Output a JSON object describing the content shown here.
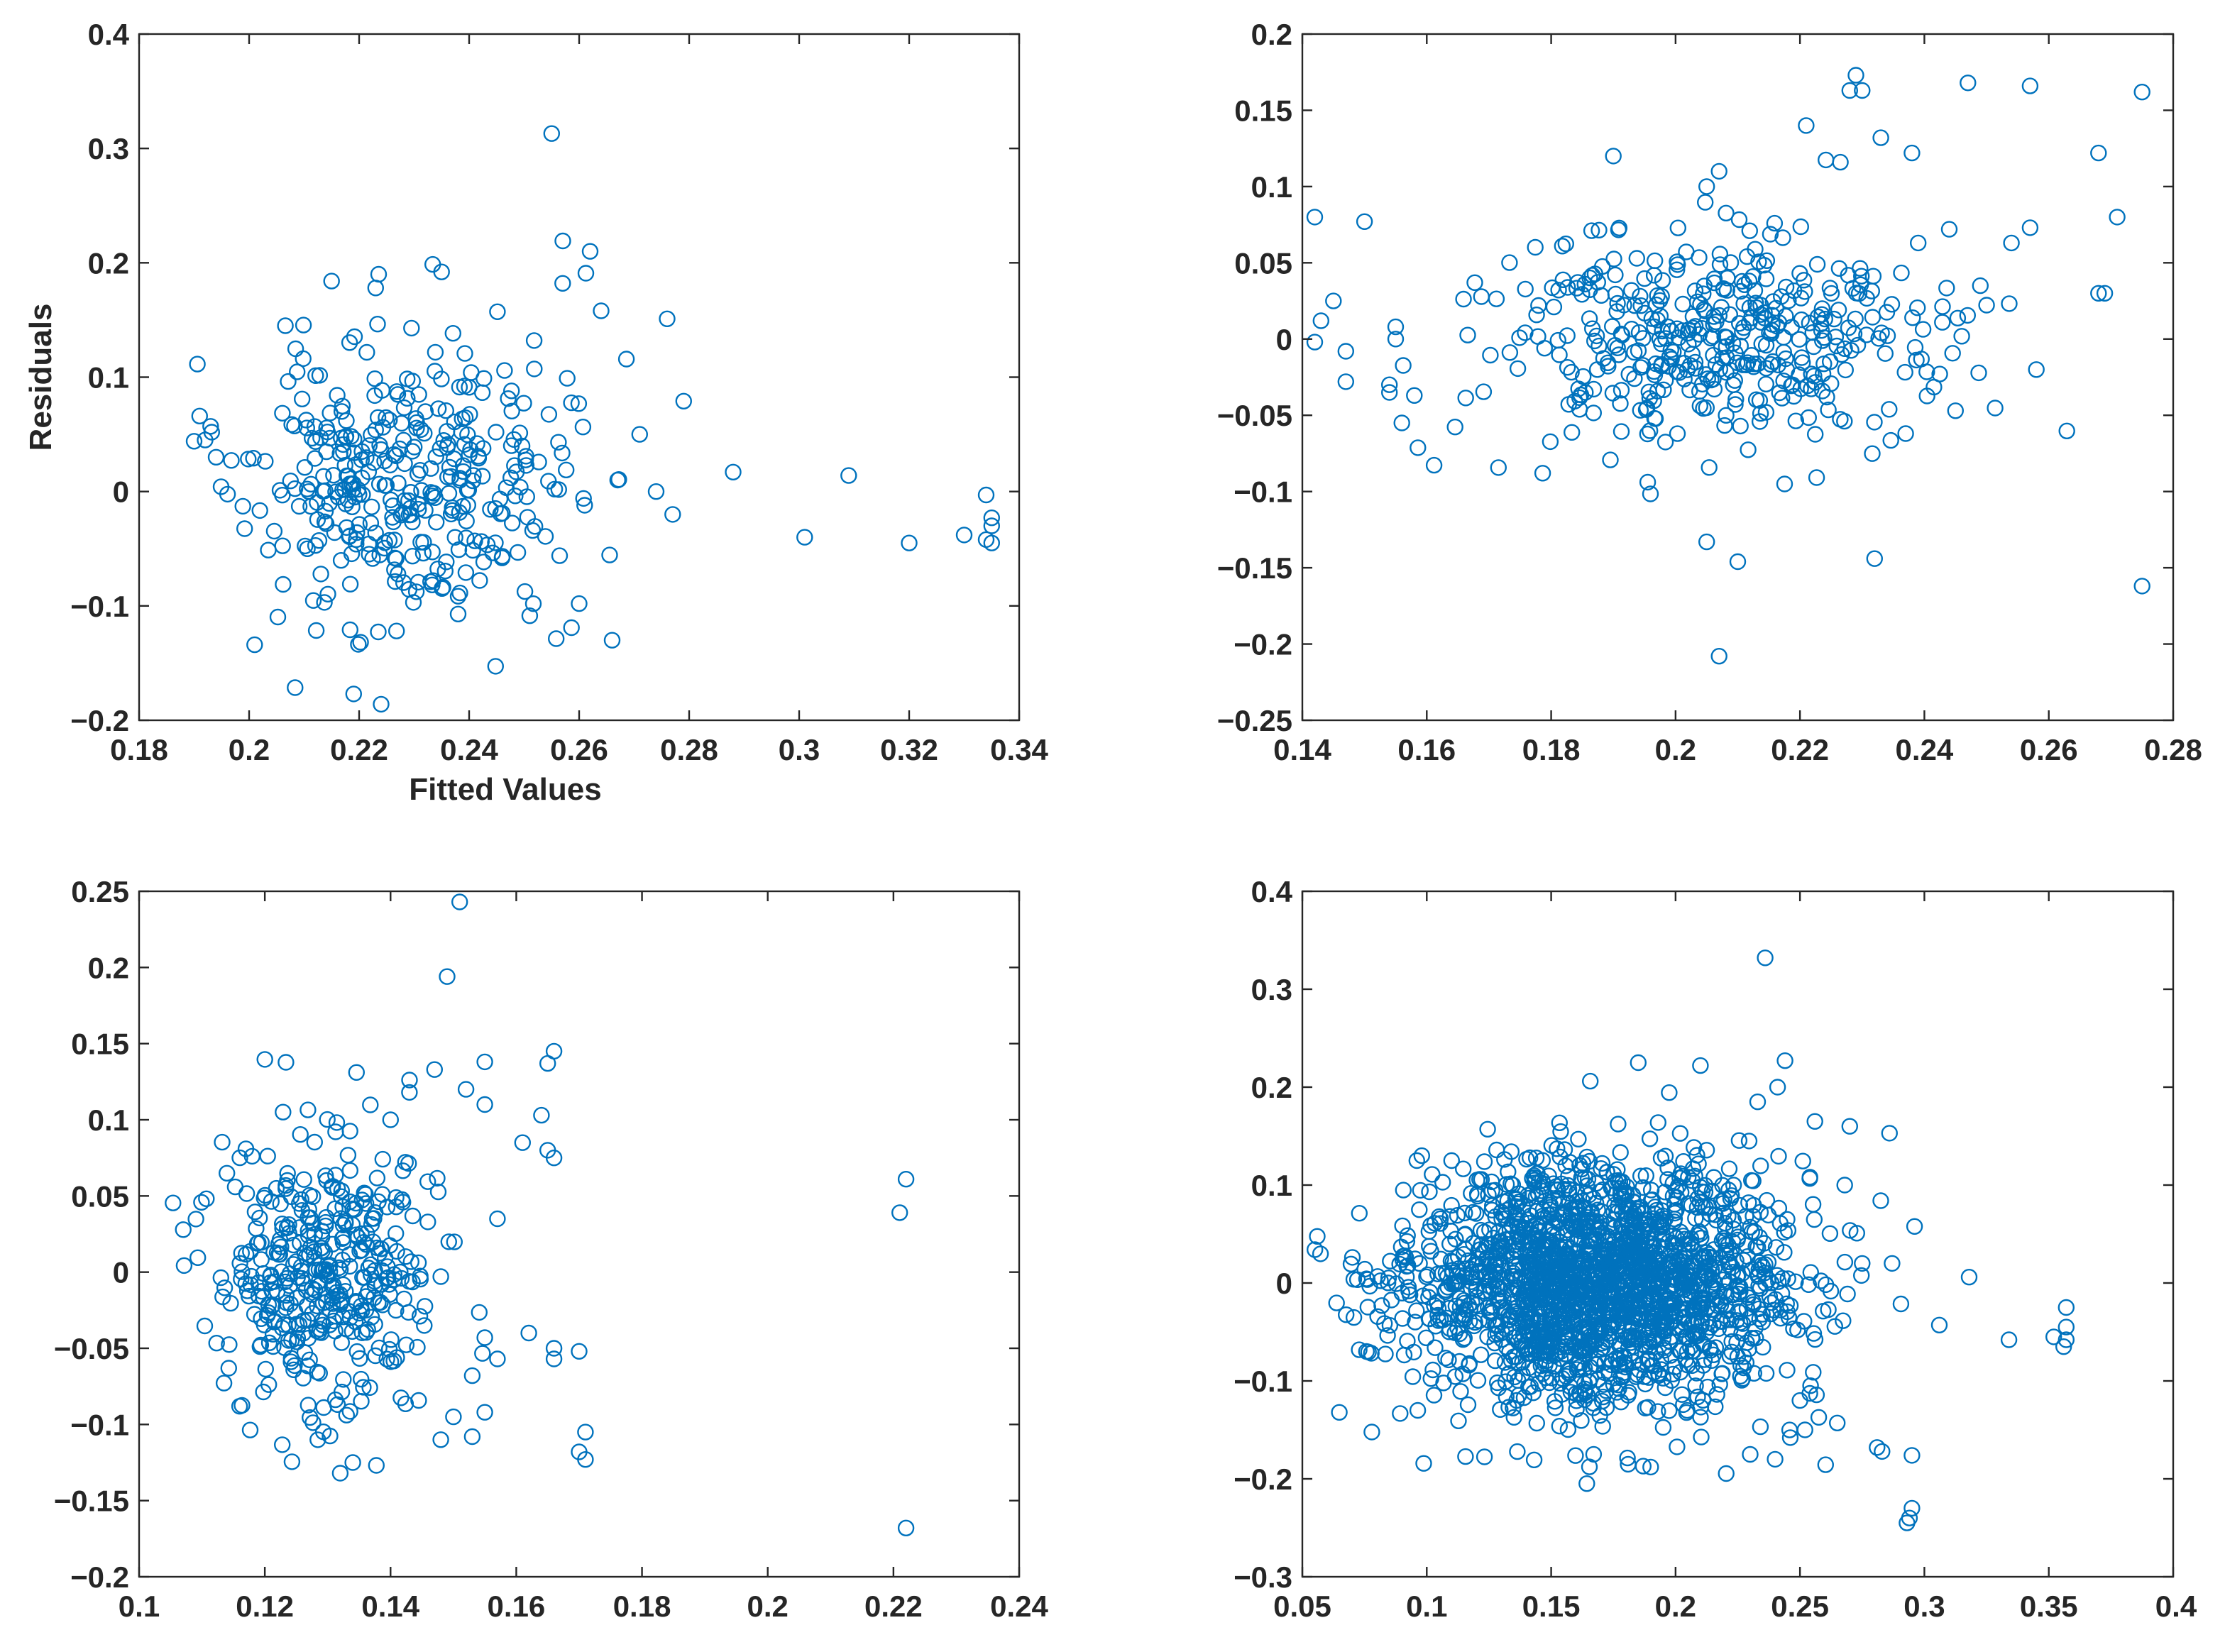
{
  "figure": {
    "background": "#ffffff",
    "marker_color": "#0072BD",
    "axis_color": "#262626"
  },
  "chart_data": [
    {
      "type": "scatter",
      "name": "top-left",
      "title": "",
      "xlabel": "Fitted Values",
      "ylabel": "Residuals",
      "xlim": [
        0.18,
        0.34
      ],
      "ylim": [
        -0.2,
        0.4
      ],
      "xticks": [
        0.18,
        0.2,
        0.22,
        0.24,
        0.26,
        0.28,
        0.3,
        0.32,
        0.34
      ],
      "xtick_labels": [
        "0.18",
        "0.2",
        "0.22",
        "0.24",
        "0.26",
        "0.28",
        "0.3",
        "0.32",
        "0.34"
      ],
      "yticks": [
        -0.2,
        -0.1,
        0,
        0.1,
        0.2,
        0.3,
        0.4
      ],
      "ytick_labels": [
        "−0.2",
        "−0.1",
        "0",
        "0.1",
        "0.2",
        "0.3",
        "0.4"
      ],
      "series": [
        {
          "name": "residuals",
          "cluster": {
            "n": 360,
            "x_mean": 0.228,
            "x_sd": 0.014,
            "y_mean": 0.005,
            "y_sd": 0.062,
            "seed": 11
          },
          "points": [
            [
              0.255,
              0.313
            ],
            [
              0.235,
              0.192
            ],
            [
              0.262,
              0.21
            ],
            [
              0.257,
              0.182
            ],
            [
              0.276,
              0.151
            ],
            [
              0.264,
              0.158
            ],
            [
              0.279,
              0.079
            ],
            [
              0.271,
              0.05
            ],
            [
              0.288,
              0.017
            ],
            [
              0.309,
              0.014
            ],
            [
              0.301,
              -0.04
            ],
            [
              0.32,
              -0.045
            ],
            [
              0.33,
              -0.038
            ],
            [
              0.334,
              -0.003
            ],
            [
              0.335,
              -0.023
            ],
            [
              0.335,
              -0.03
            ],
            [
              0.334,
              -0.042
            ],
            [
              0.335,
              -0.045
            ],
            [
              0.266,
              -0.13
            ],
            [
              0.201,
              -0.134
            ],
            [
              0.219,
              -0.177
            ],
            [
              0.224,
              -0.186
            ],
            [
              0.191,
              0.066
            ],
            [
              0.192,
              0.045
            ],
            [
              0.19,
              0.044
            ],
            [
              0.194,
              0.03
            ],
            [
              0.193,
              0.057
            ],
            [
              0.215,
              0.184
            ],
            [
              0.223,
              0.178
            ],
            [
              0.26,
              -0.098
            ],
            [
              0.261,
              -0.012
            ],
            [
              0.274,
              0.0
            ],
            [
              0.277,
              -0.02
            ],
            [
              0.267,
              0.01
            ]
          ]
        }
      ]
    },
    {
      "type": "scatter",
      "name": "top-right",
      "title": "",
      "xlabel": "",
      "ylabel": "",
      "xlim": [
        0.14,
        0.28
      ],
      "ylim": [
        -0.25,
        0.2
      ],
      "xticks": [
        0.14,
        0.16,
        0.18,
        0.2,
        0.22,
        0.24,
        0.26,
        0.28
      ],
      "xtick_labels": [
        "0.14",
        "0.16",
        "0.18",
        "0.2",
        "0.22",
        "0.24",
        "0.26",
        "0.28"
      ],
      "yticks": [
        -0.25,
        -0.2,
        -0.15,
        -0.1,
        -0.05,
        0,
        0.05,
        0.1,
        0.15,
        0.2
      ],
      "ytick_labels": [
        "−0.25",
        "−0.2",
        "−0.15",
        "−0.1",
        "−0.05",
        "0",
        "0.05",
        "0.1",
        "0.15",
        "0.2"
      ],
      "series": [
        {
          "name": "residuals",
          "cluster": {
            "n": 420,
            "x_mean": 0.205,
            "x_sd": 0.017,
            "y_mean": -0.002,
            "y_sd": 0.036,
            "seed": 23
          },
          "points": [
            [
              0.229,
              0.173
            ],
            [
              0.228,
              0.163
            ],
            [
              0.23,
              0.163
            ],
            [
              0.247,
              0.168
            ],
            [
              0.257,
              0.166
            ],
            [
              0.275,
              0.162
            ],
            [
              0.221,
              0.14
            ],
            [
              0.233,
              0.132
            ],
            [
              0.238,
              0.122
            ],
            [
              0.268,
              0.122
            ],
            [
              0.19,
              0.12
            ],
            [
              0.207,
              0.11
            ],
            [
              0.205,
              0.1
            ],
            [
              0.142,
              0.08
            ],
            [
              0.15,
              0.077
            ],
            [
              0.271,
              0.08
            ],
            [
              0.275,
              -0.162
            ],
            [
              0.207,
              -0.208
            ],
            [
              0.21,
              -0.146
            ],
            [
              0.232,
              -0.144
            ],
            [
              0.205,
              -0.133
            ],
            [
              0.258,
              -0.02
            ],
            [
              0.268,
              0.03
            ],
            [
              0.269,
              0.03
            ],
            [
              0.249,
              0.035
            ],
            [
              0.143,
              0.012
            ],
            [
              0.145,
              0.025
            ],
            [
              0.142,
              -0.002
            ],
            [
              0.147,
              -0.028
            ],
            [
              0.156,
              -0.055
            ],
            [
              0.154,
              -0.035
            ],
            [
              0.158,
              -0.037
            ],
            [
              0.155,
              0.008
            ],
            [
              0.154,
              -0.03
            ],
            [
              0.147,
              -0.008
            ],
            [
              0.155,
              0.0
            ],
            [
              0.239,
              0.063
            ],
            [
              0.244,
              0.072
            ],
            [
              0.254,
              0.063
            ],
            [
              0.257,
              0.073
            ],
            [
              0.245,
              -0.047
            ],
            [
              0.237,
              -0.062
            ]
          ]
        }
      ]
    },
    {
      "type": "scatter",
      "name": "bottom-left",
      "title": "",
      "xlabel": "",
      "ylabel": "",
      "xlim": [
        0.1,
        0.24
      ],
      "ylim": [
        -0.2,
        0.25
      ],
      "xticks": [
        0.1,
        0.12,
        0.14,
        0.16,
        0.18,
        0.2,
        0.22,
        0.24
      ],
      "xtick_labels": [
        "0.1",
        "0.12",
        "0.14",
        "0.16",
        "0.18",
        "0.2",
        "0.22",
        "0.24"
      ],
      "yticks": [
        -0.2,
        -0.15,
        -0.1,
        -0.05,
        0,
        0.05,
        0.1,
        0.15,
        0.2,
        0.25
      ],
      "ytick_labels": [
        "−0.2",
        "−0.15",
        "−0.1",
        "−0.05",
        "0",
        "0.05",
        "0.1",
        "0.15",
        "0.2",
        "0.25"
      ],
      "series": [
        {
          "name": "residuals",
          "cluster": {
            "n": 400,
            "x_mean": 0.13,
            "x_sd": 0.0085,
            "y_mean": 0.0,
            "y_sd": 0.045,
            "seed": 37
          },
          "points": [
            [
              0.151,
              0.243
            ],
            [
              0.149,
              0.194
            ],
            [
              0.166,
              0.145
            ],
            [
              0.155,
              0.138
            ],
            [
              0.165,
              0.137
            ],
            [
              0.147,
              0.133
            ],
            [
              0.152,
              0.12
            ],
            [
              0.155,
              0.11
            ],
            [
              0.164,
              0.103
            ],
            [
              0.161,
              0.085
            ],
            [
              0.165,
              0.08
            ],
            [
              0.166,
              0.075
            ],
            [
              0.222,
              0.061
            ],
            [
              0.221,
              0.039
            ],
            [
              0.222,
              -0.168
            ],
            [
              0.17,
              -0.052
            ],
            [
              0.17,
              -0.118
            ],
            [
              0.171,
              -0.123
            ],
            [
              0.171,
              -0.105
            ],
            [
              0.166,
              -0.05
            ],
            [
              0.166,
              -0.057
            ],
            [
              0.162,
              -0.04
            ],
            [
              0.157,
              0.035
            ],
            [
              0.157,
              -0.057
            ],
            [
              0.155,
              -0.043
            ],
            [
              0.153,
              -0.068
            ],
            [
              0.155,
              -0.092
            ],
            [
              0.153,
              -0.108
            ],
            [
              0.15,
              -0.095
            ],
            [
              0.148,
              -0.11
            ],
            [
              0.14,
              0.1
            ],
            [
              0.143,
              0.118
            ],
            [
              0.132,
              -0.132
            ],
            [
              0.134,
              -0.125
            ]
          ]
        }
      ]
    },
    {
      "type": "scatter",
      "name": "bottom-right",
      "title": "",
      "xlabel": "",
      "ylabel": "",
      "xlim": [
        0.05,
        0.4
      ],
      "ylim": [
        -0.3,
        0.4
      ],
      "xticks": [
        0.05,
        0.1,
        0.15,
        0.2,
        0.25,
        0.3,
        0.35,
        0.4
      ],
      "xtick_labels": [
        "0.05",
        "0.1",
        "0.15",
        "0.2",
        "0.25",
        "0.3",
        "0.35",
        "0.4"
      ],
      "yticks": [
        -0.3,
        -0.2,
        -0.1,
        0,
        0.1,
        0.2,
        0.3,
        0.4
      ],
      "ytick_labels": [
        "−0.3",
        "−0.2",
        "−0.1",
        "0",
        "0.1",
        "0.2",
        "0.3",
        "0.4"
      ],
      "series": [
        {
          "name": "residuals",
          "cluster": {
            "n": 2000,
            "x_mean": 0.17,
            "x_sd": 0.037,
            "y_mean": 0.0,
            "y_sd": 0.06,
            "seed": 53
          },
          "points": [
            [
              0.236,
              0.332
            ],
            [
              0.244,
              0.227
            ],
            [
              0.241,
              0.2
            ],
            [
              0.233,
              0.185
            ],
            [
              0.21,
              0.222
            ],
            [
              0.185,
              0.225
            ],
            [
              0.256,
              0.165
            ],
            [
              0.27,
              0.16
            ],
            [
              0.286,
              0.153
            ],
            [
              0.268,
              0.1
            ],
            [
              0.287,
              0.02
            ],
            [
              0.306,
              -0.043
            ],
            [
              0.318,
              0.006
            ],
            [
              0.334,
              -0.058
            ],
            [
              0.357,
              -0.025
            ],
            [
              0.357,
              -0.045
            ],
            [
              0.357,
              -0.058
            ],
            [
              0.356,
              -0.065
            ],
            [
              0.352,
              -0.055
            ],
            [
              0.295,
              -0.176
            ],
            [
              0.283,
              -0.172
            ],
            [
              0.281,
              -0.168
            ],
            [
              0.294,
              -0.24
            ],
            [
              0.293,
              -0.245
            ],
            [
              0.295,
              -0.23
            ],
            [
              0.25,
              -0.12
            ],
            [
              0.252,
              -0.15
            ],
            [
              0.24,
              -0.18
            ],
            [
              0.23,
              -0.175
            ],
            [
              0.187,
              -0.187
            ],
            [
              0.19,
              -0.188
            ],
            [
              0.11,
              0.125
            ],
            [
              0.098,
              0.13
            ],
            [
              0.096,
              0.125
            ],
            [
              0.265,
              -0.143
            ],
            [
              0.275,
              0.02
            ]
          ]
        }
      ]
    }
  ]
}
